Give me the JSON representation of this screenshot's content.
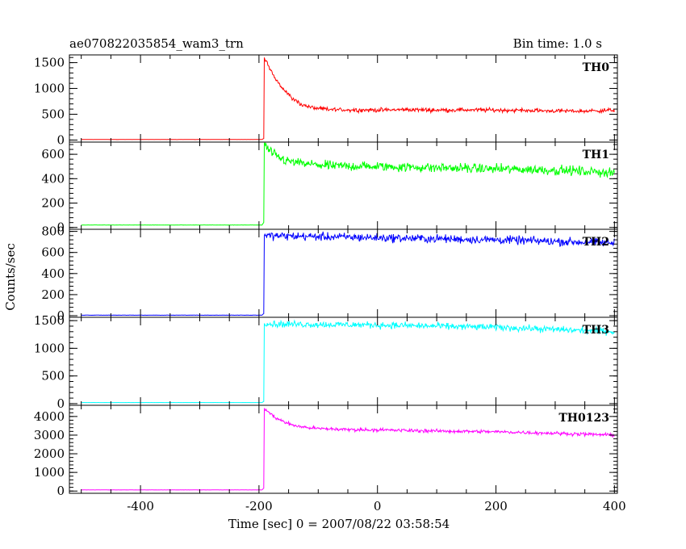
{
  "header": {
    "title": "ae070822035854_wam3_trn",
    "bin_time": "Bin time: 1.0 s"
  },
  "axes": {
    "xlabel": "Time [sec] 0 = 2007/08/22 03:58:54",
    "ylabel": "Counts/sec"
  },
  "chart_data": {
    "type": "line",
    "title": "ae070822035854_wam3_trn",
    "xlabel": "Time [sec] 0 = 2007/08/22 03:58:54",
    "ylabel": "Counts/sec",
    "xlim": [
      -520,
      405
    ],
    "x_ticks": [
      -400,
      -200,
      0,
      200,
      400
    ],
    "x_tick_labels": [
      "-400",
      "-200",
      "0",
      "200",
      "400"
    ],
    "grid": false,
    "legend": "none",
    "panels": [
      {
        "name": "TH0",
        "color": "#ff0000",
        "ylim": [
          -40,
          1650
        ],
        "yticks": [
          0,
          500,
          1000,
          1500
        ],
        "ytick_labels": [
          "0",
          "500",
          "1000",
          "1500"
        ],
        "x_start": -500,
        "x_end": 400,
        "x": [
          -500,
          -195,
          -192,
          -191,
          -185,
          -175,
          -160,
          -145,
          -130,
          -115,
          -100,
          -80,
          -50,
          0,
          50,
          100,
          150,
          200,
          250,
          300,
          350,
          400
        ],
        "y": [
          10,
          10,
          30,
          1600,
          1450,
          1250,
          1000,
          820,
          700,
          640,
          610,
          590,
          585,
          580,
          590,
          580,
          585,
          580,
          575,
          565,
          560,
          580
        ],
        "noise": 30
      },
      {
        "name": "TH1",
        "color": "#00ff00",
        "ylim": [
          -15,
          700
        ],
        "yticks": [
          0,
          200,
          400,
          600
        ],
        "ytick_labels": [
          "0",
          "200",
          "400",
          "600"
        ],
        "x_start": -500,
        "x_end": 400,
        "x": [
          -500,
          -195,
          -192,
          -191,
          -185,
          -170,
          -150,
          -120,
          -80,
          0,
          100,
          200,
          300,
          400
        ],
        "y": [
          20,
          20,
          40,
          690,
          640,
          580,
          540,
          520,
          505,
          500,
          490,
          480,
          470,
          450
        ],
        "noise": 30
      },
      {
        "name": "TH2",
        "color": "#0000ff",
        "ylim": [
          -15,
          820
        ],
        "yticks": [
          0,
          200,
          400,
          600,
          800
        ],
        "ytick_labels": [
          "0",
          "200",
          "400",
          "600",
          "800"
        ],
        "x_start": -500,
        "x_end": 400,
        "x": [
          -500,
          -195,
          -192,
          -191,
          -150,
          -100,
          0,
          100,
          200,
          300,
          400
        ],
        "y": [
          5,
          5,
          20,
          760,
          755,
          750,
          740,
          730,
          720,
          705,
          690
        ],
        "noise": 30
      },
      {
        "name": "TH3",
        "color": "#00ffff",
        "ylim": [
          -30,
          1560
        ],
        "yticks": [
          0,
          500,
          1000,
          1500
        ],
        "ytick_labels": [
          "0",
          "500",
          "1000",
          "1500"
        ],
        "x_start": -500,
        "x_end": 400,
        "x": [
          -500,
          -195,
          -192,
          -191,
          -180,
          -100,
          0,
          100,
          200,
          300,
          400
        ],
        "y": [
          20,
          20,
          40,
          1450,
          1440,
          1430,
          1420,
          1400,
          1380,
          1340,
          1300
        ],
        "noise": 45
      },
      {
        "name": "TH0123",
        "color": "#ff00ff",
        "ylim": [
          -120,
          4600
        ],
        "yticks": [
          0,
          1000,
          2000,
          3000,
          4000
        ],
        "ytick_labels": [
          "0",
          "1000",
          "2000",
          "3000",
          "4000"
        ],
        "x_start": -500,
        "x_end": 400,
        "x": [
          -500,
          -195,
          -192,
          -191,
          -185,
          -170,
          -150,
          -130,
          -100,
          -50,
          0,
          100,
          200,
          300,
          400
        ],
        "y": [
          60,
          60,
          150,
          4450,
          4250,
          3900,
          3600,
          3450,
          3350,
          3300,
          3280,
          3220,
          3180,
          3100,
          3000
        ],
        "noise": 70
      }
    ]
  }
}
